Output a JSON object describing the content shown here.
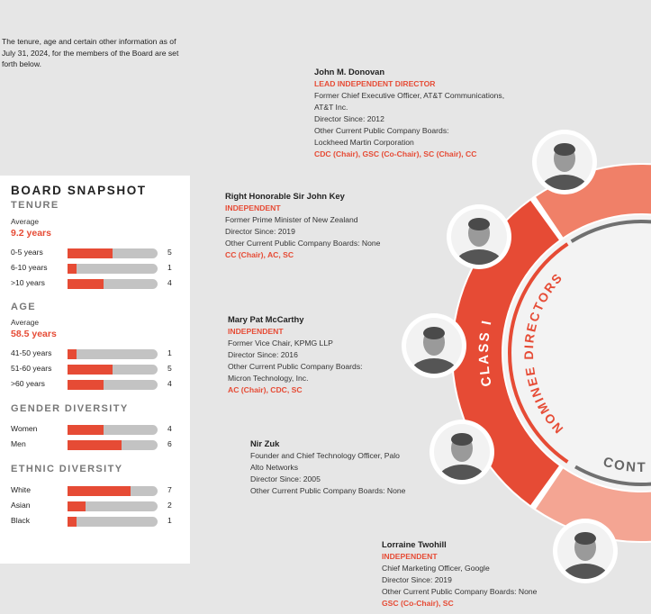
{
  "intro": "The tenure, age and certain other information as of July 31, 2024, for the members of the Board are set forth below.",
  "snapshot": {
    "title": "BOARD SNAPSHOT",
    "max": 10,
    "tenure": {
      "heading": "TENURE",
      "avg_label": "Average",
      "avg_value": "9.2 years",
      "rows": [
        {
          "label": "0-5 years",
          "value": 5
        },
        {
          "label": "6-10 years",
          "value": 1
        },
        {
          "label": ">10 years",
          "value": 4
        }
      ]
    },
    "age": {
      "heading": "AGE",
      "avg_label": "Average",
      "avg_value": "58.5 years",
      "rows": [
        {
          "label": "41-50 years",
          "value": 1
        },
        {
          "label": "51-60 years",
          "value": 5
        },
        {
          "label": ">60 years",
          "value": 4
        }
      ]
    },
    "gender": {
      "heading": "GENDER DIVERSITY",
      "rows": [
        {
          "label": "Women",
          "value": 4
        },
        {
          "label": "Men",
          "value": 6
        }
      ]
    },
    "ethnic": {
      "heading": "ETHNIC DIVERSITY",
      "rows": [
        {
          "label": "White",
          "value": 7
        },
        {
          "label": "Asian",
          "value": 2
        },
        {
          "label": "Black",
          "value": 1
        }
      ]
    }
  },
  "wheel": {
    "class_label": "CLASS I",
    "nominee_label": "NOMINEE DIRECTORS",
    "continuing_label": "CONT",
    "colors": {
      "red": "#e64b35",
      "pink": "#f08068",
      "light_pink": "#f4a593",
      "gray": "#707070"
    }
  },
  "directors": [
    {
      "name": "John M. Donovan",
      "role": "LEAD INDEPENDENT DIRECTOR",
      "lines": [
        "Former Chief Executive Officer, AT&T Communications,",
        "AT&T Inc.",
        "Director Since: 2012",
        "Other Current Public Company Boards:",
        "Lockheed Martin Corporation"
      ],
      "committees": "CDC (Chair), GSC (Co-Chair), SC (Chair), CC"
    },
    {
      "name": "Right Honorable Sir John Key",
      "role": "INDEPENDENT",
      "lines": [
        "Former Prime Minister of New Zealand",
        "Director Since: 2019",
        "Other Current Public Company Boards: None"
      ],
      "committees": "CC (Chair), AC, SC"
    },
    {
      "name": "Mary Pat McCarthy",
      "role": "INDEPENDENT",
      "lines": [
        "Former Vice Chair, KPMG LLP",
        "Director Since: 2016",
        "Other Current Public Company Boards:",
        "Micron Technology, Inc."
      ],
      "committees": "AC (Chair), CDC, SC"
    },
    {
      "name": "Nir Zuk",
      "lines": [
        "Founder and Chief Technology Officer, Palo",
        "Alto Networks",
        "Director Since: 2005",
        "Other Current Public Company Boards: None"
      ]
    },
    {
      "name": "Lorraine Twohill",
      "role": "INDEPENDENT",
      "lines": [
        "Chief Marketing Officer, Google",
        "Director Since: 2019",
        "Other Current Public Company Boards: None"
      ],
      "committees": "GSC (Co-Chair), SC"
    }
  ]
}
